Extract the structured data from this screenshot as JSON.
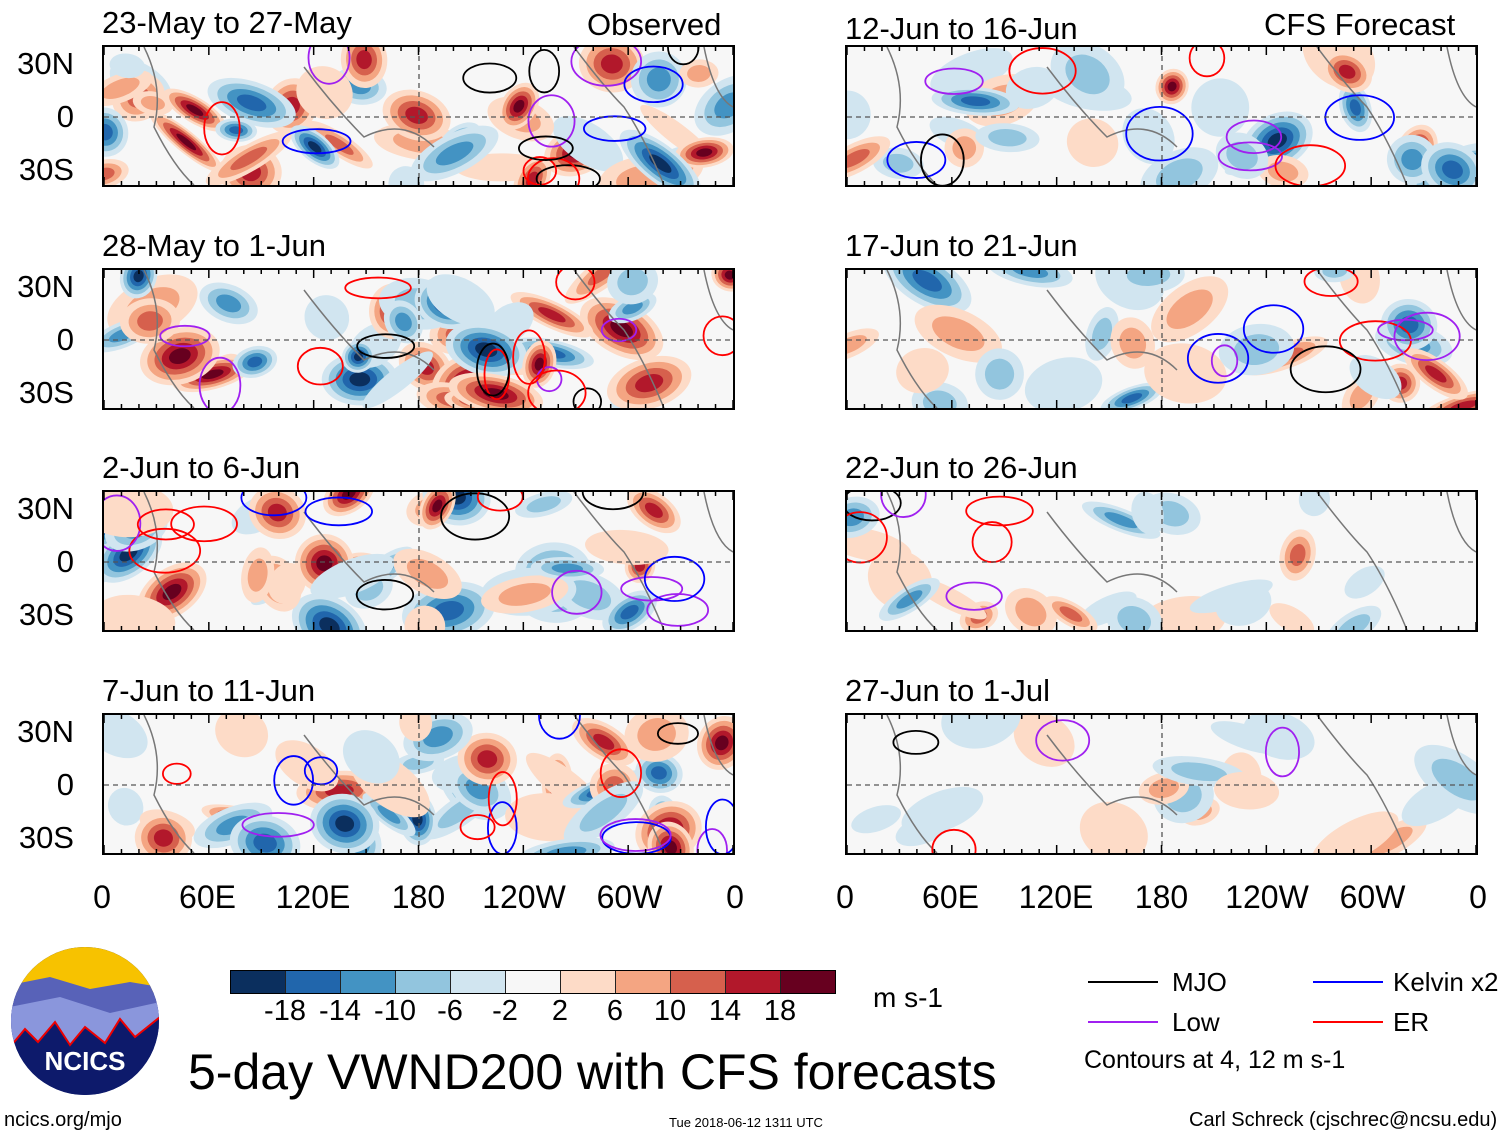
{
  "header": {
    "observed_label": "Observed",
    "forecast_label": "CFS Forecast"
  },
  "panels_observed": [
    {
      "title": "23-May to 27-May"
    },
    {
      "title": "28-May to 1-Jun"
    },
    {
      "title": "2-Jun to 6-Jun"
    },
    {
      "title": "7-Jun to 11-Jun"
    }
  ],
  "panels_forecast": [
    {
      "title": "12-Jun to 16-Jun"
    },
    {
      "title": "17-Jun to 21-Jun"
    },
    {
      "title": "22-Jun to 26-Jun"
    },
    {
      "title": "27-Jun to 1-Jul"
    }
  ],
  "lat_labels": [
    "30N",
    "0",
    "30S"
  ],
  "lon_labels": [
    "0",
    "60E",
    "120E",
    "180",
    "120W",
    "60W",
    "0"
  ],
  "colorbar": {
    "colors": [
      "#0b2f5e",
      "#2166ac",
      "#4393c3",
      "#92c5de",
      "#d1e5f0",
      "#f7f7f7",
      "#fddbc7",
      "#f4a582",
      "#d6604d",
      "#b2182b",
      "#67001f"
    ],
    "labels": [
      "-18",
      "-14",
      "-10",
      "-6",
      "-2",
      "2",
      "6",
      "10",
      "14",
      "18"
    ],
    "units": "m s-1"
  },
  "legend": {
    "items": [
      {
        "label": "MJO",
        "color": "#000000"
      },
      {
        "label": "Kelvin x2",
        "color": "#0000ff"
      },
      {
        "label": "Low",
        "color": "#a020f0"
      },
      {
        "label": "ER",
        "color": "#ff0000"
      }
    ],
    "note": "Contours at 4, 12 m s-1"
  },
  "logo": {
    "text": "NCICS"
  },
  "title": "5-day VWND200 with CFS forecasts",
  "footer": {
    "url": "ncics.org/mjo",
    "timestamp": "Tue 2018-06-12 1311 UTC",
    "credit": "Carl Schreck (cjschrec@ncsu.edu)"
  }
}
